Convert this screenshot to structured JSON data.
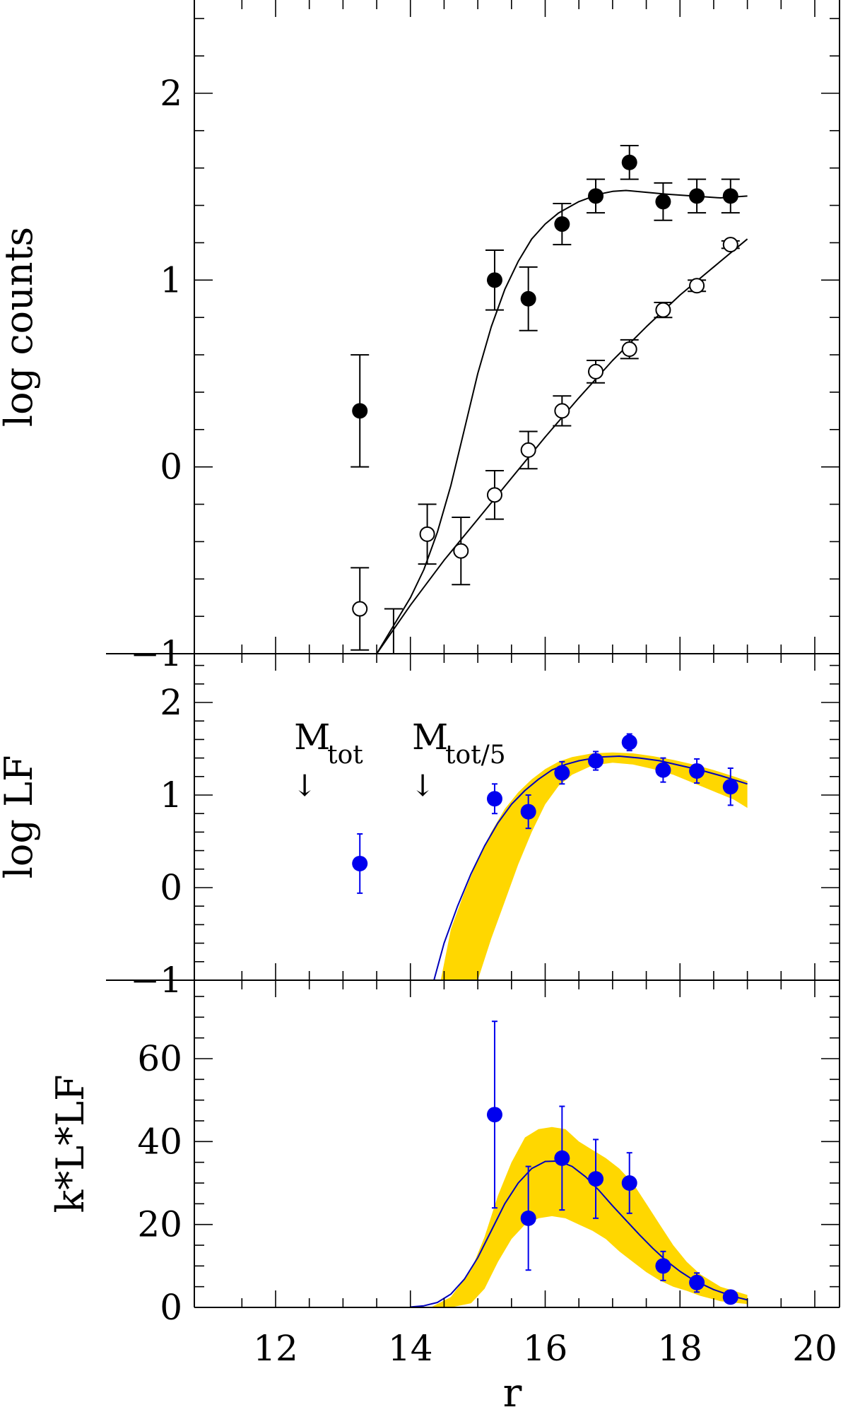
{
  "chart_data": [
    {
      "panel": "top",
      "type": "scatter",
      "ylabel": "log counts",
      "xlim": [
        11,
        20.2
      ],
      "ylim": [
        -1,
        2.5
      ],
      "y_ticks": [
        -1,
        0,
        1,
        2
      ],
      "y_tick_labels": [
        "−1",
        "0",
        "1",
        "2"
      ],
      "series": [
        {
          "marker": "filled-circle",
          "color": "#000000",
          "points": [
            {
              "x": 13.25,
              "y": 0.3,
              "err": 0.3
            },
            {
              "x": 15.25,
              "y": 1.0,
              "err": 0.16
            },
            {
              "x": 15.75,
              "y": 0.9,
              "err": 0.17
            },
            {
              "x": 16.25,
              "y": 1.3,
              "err": 0.11
            },
            {
              "x": 16.75,
              "y": 1.45,
              "err": 0.09
            },
            {
              "x": 17.25,
              "y": 1.63,
              "err": 0.09
            },
            {
              "x": 17.75,
              "y": 1.42,
              "err": 0.1
            },
            {
              "x": 18.25,
              "y": 1.45,
              "err": 0.09
            },
            {
              "x": 18.75,
              "y": 1.45,
              "err": 0.09
            }
          ],
          "extra_errorbars": [
            {
              "x": 13.75,
              "ylow": -1.0,
              "yhigh": -0.76
            }
          ]
        },
        {
          "marker": "open-circle",
          "color": "#000000",
          "points": [
            {
              "x": 13.25,
              "y": -0.76,
              "err": 0.22
            },
            {
              "x": 14.25,
              "y": -0.36,
              "err": 0.16
            },
            {
              "x": 14.75,
              "y": -0.45,
              "err": 0.18
            },
            {
              "x": 15.25,
              "y": -0.15,
              "err": 0.13
            },
            {
              "x": 15.75,
              "y": 0.09,
              "err": 0.1
            },
            {
              "x": 16.25,
              "y": 0.3,
              "err": 0.08
            },
            {
              "x": 16.75,
              "y": 0.51,
              "err": 0.06
            },
            {
              "x": 17.25,
              "y": 0.63,
              "err": 0.05
            },
            {
              "x": 17.75,
              "y": 0.84,
              "err": 0.04
            },
            {
              "x": 18.25,
              "y": 0.97,
              "err": 0.03
            },
            {
              "x": 18.75,
              "y": 1.19,
              "err": 0.02
            }
          ]
        }
      ],
      "curves": [
        {
          "color": "#000000",
          "x": [
            13.5,
            13.8,
            14.0,
            14.2,
            14.4,
            14.6,
            14.8,
            15.0,
            15.2,
            15.4,
            15.6,
            15.8,
            16.0,
            16.2,
            16.5,
            16.8,
            17.0,
            17.2,
            17.5,
            17.8,
            18.2,
            18.6,
            19.0
          ],
          "y": [
            -1.0,
            -0.82,
            -0.7,
            -0.55,
            -0.35,
            -0.1,
            0.2,
            0.5,
            0.75,
            0.95,
            1.1,
            1.22,
            1.3,
            1.36,
            1.42,
            1.46,
            1.475,
            1.48,
            1.47,
            1.46,
            1.45,
            1.44,
            1.45
          ]
        },
        {
          "color": "#000000",
          "x": [
            13.5,
            14.0,
            14.5,
            15.0,
            15.5,
            16.0,
            16.5,
            17.0,
            17.5,
            18.0,
            18.5,
            19.0
          ],
          "y": [
            -1.0,
            -0.74,
            -0.5,
            -0.28,
            -0.06,
            0.16,
            0.37,
            0.57,
            0.75,
            0.92,
            1.07,
            1.22
          ]
        }
      ]
    },
    {
      "panel": "middle",
      "type": "scatter",
      "ylabel": "log LF",
      "xlim": [
        11,
        20.2
      ],
      "ylim": [
        -1,
        2.5
      ],
      "y_ticks": [
        -1,
        0,
        1,
        2
      ],
      "y_tick_labels": [
        "−1",
        "0",
        "1",
        "2"
      ],
      "annotations": [
        {
          "text": "M",
          "subscript": "tot",
          "arrow": "↓",
          "x": 12.4
        },
        {
          "text": "M",
          "subscript": "tot/5",
          "arrow": "↓",
          "x": 14.15
        }
      ],
      "series": [
        {
          "marker": "filled-circle",
          "color": "#0000ee",
          "points": [
            {
              "x": 13.25,
              "y": 0.26,
              "err": 0.32
            },
            {
              "x": 15.25,
              "y": 0.96,
              "err": 0.16
            },
            {
              "x": 15.75,
              "y": 0.82,
              "err": 0.18
            },
            {
              "x": 16.25,
              "y": 1.24,
              "err": 0.12
            },
            {
              "x": 16.75,
              "y": 1.37,
              "err": 0.1
            },
            {
              "x": 17.25,
              "y": 1.57,
              "err": 0.09
            },
            {
              "x": 17.75,
              "y": 1.27,
              "err": 0.13
            },
            {
              "x": 18.25,
              "y": 1.26,
              "err": 0.13
            },
            {
              "x": 18.75,
              "y": 1.09,
              "err": 0.2
            }
          ]
        }
      ],
      "curve": {
        "color": "#0000bb",
        "x": [
          14.35,
          14.5,
          14.7,
          14.9,
          15.1,
          15.3,
          15.5,
          15.7,
          15.9,
          16.1,
          16.3,
          16.5,
          16.8,
          17.1,
          17.4,
          17.7,
          18.0,
          18.3,
          18.6,
          19.0
        ],
        "y": [
          -1.0,
          -0.6,
          -0.2,
          0.15,
          0.45,
          0.7,
          0.9,
          1.05,
          1.17,
          1.27,
          1.33,
          1.37,
          1.41,
          1.42,
          1.4,
          1.37,
          1.32,
          1.27,
          1.21,
          1.12
        ]
      },
      "band": {
        "color": "#ffd700",
        "x": [
          14.45,
          14.6,
          14.8,
          15.0,
          15.2,
          15.4,
          15.6,
          15.8,
          16.0,
          16.2,
          16.4,
          16.7,
          17.0,
          17.3,
          17.6,
          17.9,
          18.2,
          18.5,
          18.8,
          19.0
        ],
        "upper": [
          -1.0,
          -0.45,
          -0.05,
          0.3,
          0.6,
          0.85,
          1.03,
          1.17,
          1.28,
          1.36,
          1.41,
          1.45,
          1.46,
          1.45,
          1.42,
          1.38,
          1.33,
          1.27,
          1.2,
          1.15
        ],
        "lower": [
          -1.0,
          -1.0,
          -1.0,
          -1.0,
          -0.55,
          -0.15,
          0.25,
          0.6,
          0.9,
          1.1,
          1.22,
          1.32,
          1.35,
          1.33,
          1.28,
          1.22,
          1.13,
          1.04,
          0.95,
          0.86
        ]
      }
    },
    {
      "panel": "bottom",
      "type": "scatter",
      "ylabel": "k*L*LF",
      "xlabel": "r",
      "xlim": [
        11,
        20.2
      ],
      "ylim": [
        0,
        75
      ],
      "x_ticks": [
        12,
        14,
        16,
        18,
        20
      ],
      "x_tick_labels": [
        "12",
        "14",
        "16",
        "18",
        "20"
      ],
      "y_ticks": [
        0,
        20,
        40,
        60
      ],
      "y_tick_labels": [
        "0",
        "20",
        "40",
        "60"
      ],
      "series": [
        {
          "marker": "filled-circle",
          "color": "#0000ee",
          "points": [
            {
              "x": 15.25,
              "y": 46.5,
              "err": 22.5
            },
            {
              "x": 15.75,
              "y": 21.5,
              "err": 12.5
            },
            {
              "x": 16.25,
              "y": 36,
              "err": 12.5
            },
            {
              "x": 16.75,
              "y": 31,
              "err": 9.5
            },
            {
              "x": 17.25,
              "y": 30,
              "err": 7.3
            },
            {
              "x": 17.75,
              "y": 10,
              "err": 3.5
            },
            {
              "x": 18.25,
              "y": 6,
              "err": 2.3
            },
            {
              "x": 18.75,
              "y": 2.5,
              "err": 1.0
            }
          ]
        }
      ],
      "curve": {
        "color": "#0000bb",
        "x": [
          14.0,
          14.2,
          14.4,
          14.6,
          14.8,
          15.0,
          15.2,
          15.4,
          15.6,
          15.8,
          16.0,
          16.2,
          16.4,
          16.6,
          16.8,
          17.0,
          17.2,
          17.4,
          17.6,
          17.8,
          18.0,
          18.2,
          18.5,
          18.8,
          19.0
        ],
        "y": [
          0.1,
          0.4,
          1.2,
          3.2,
          6.8,
          12,
          18.5,
          25,
          30,
          33.5,
          35.2,
          35.3,
          34,
          31.5,
          28.2,
          24.5,
          21,
          17.5,
          14.2,
          11.2,
          8.7,
          6.6,
          4.3,
          2.6,
          1.8
        ]
      },
      "band": {
        "color": "#ffd700",
        "x": [
          14.3,
          14.6,
          14.9,
          15.1,
          15.3,
          15.5,
          15.7,
          15.9,
          16.1,
          16.3,
          16.5,
          16.7,
          16.9,
          17.1,
          17.3,
          17.5,
          17.7,
          17.9,
          18.1,
          18.3,
          18.6,
          19.0
        ],
        "upper": [
          0,
          2.5,
          9,
          17,
          27,
          35,
          41,
          43,
          43.5,
          43,
          40,
          38,
          36,
          33.5,
          30,
          25,
          20,
          15,
          11,
          8,
          5,
          3
        ],
        "lower": [
          0,
          0,
          1,
          4.5,
          11,
          16.5,
          20,
          21.5,
          22,
          21.5,
          20,
          18.5,
          16.5,
          13.5,
          11,
          8.5,
          6.5,
          5,
          4,
          2.8,
          1.5,
          0.8
        ]
      }
    }
  ]
}
